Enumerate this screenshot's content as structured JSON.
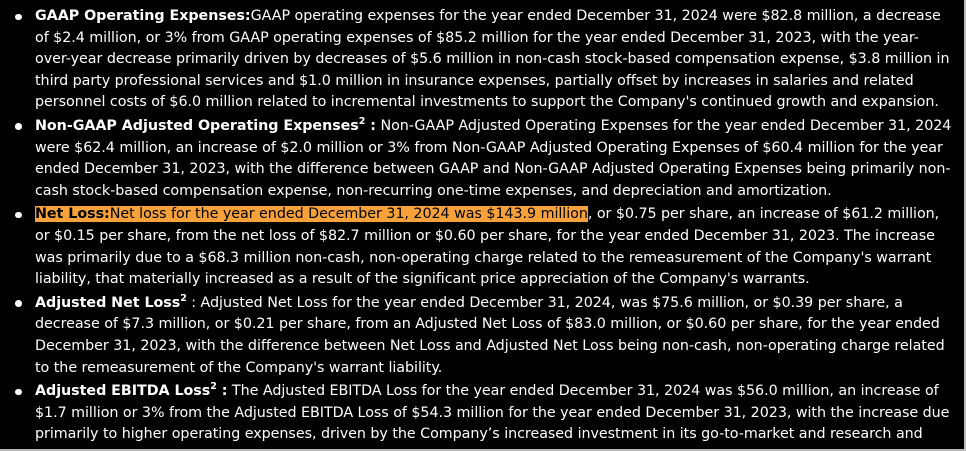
{
  "items": [
    {
      "title": "GAAP Operating Expenses:",
      "sup": "",
      "title_end": "",
      "highlight": "",
      "text": "GAAP operating expenses for the year ended December 31, 2024 were $82.8 million, a decrease of $2.4 million, or 3% from GAAP operating expenses of $85.2 million for the year ended December 31, 2023, with the year-over-year decrease primarily driven by decreases of $5.6 million in non-cash stock-based compensation expense, $3.8 million in third party professional services and $1.0 million in insurance expenses, partially offset by increases in salaries and related personnel costs of $6.0 million related to incremental investments to support the Company's continued growth and expansion."
    },
    {
      "title": "Non-GAAP Adjusted Operating Expenses",
      "sup": "2",
      "title_end": " :",
      "highlight": "",
      "text": " Non-GAAP Adjusted Operating Expenses for the year ended December 31, 2024 were $62.4 million, an increase of $2.0 million or 3% from Non-GAAP Adjusted Operating Expenses of $60.4 million for the year ended December 31, 2023, with the difference between GAAP and Non-GAAP Adjusted Operating Expenses being primarily non-cash stock-based compensation expense, non-recurring one-time expenses, and depreciation and amortization."
    },
    {
      "title": "Net Loss:",
      "sup": "",
      "title_end": "",
      "highlight": "Net loss for the year ended December 31, 2024 was $143.9 million",
      "text": ", or $0.75 per share, an increase of $61.2 million, or $0.15 per share, from the net loss of $82.7 million or $0.60 per share, for the year ended December 31, 2023. The increase was primarily due to a $68.3 million non-cash, non-operating charge related to the remeasurement of the Company's warrant liability, that materially increased as a result of the significant price appreciation of the Company's warrants."
    },
    {
      "title": "Adjusted Net Loss",
      "sup": "2",
      "title_end": "",
      "highlight": "",
      "text": " : Adjusted Net Loss for the year ended December 31, 2024, was $75.6 million, or $0.39 per share, a decrease of $7.3 million, or $0.21 per share, from an Adjusted Net Loss of $83.0 million, or $0.60 per share, for the year ended December 31, 2023, with the difference between Net Loss and Adjusted Net Loss being non-cash, non-operating charge related to the remeasurement of the Company's warrant liability."
    },
    {
      "title": "Adjusted EBITDA Loss",
      "sup": "2",
      "title_end": " :",
      "highlight": "",
      "text": " The Adjusted EBITDA Loss for the year ended December 31, 2024 was $56.0 million, an increase of $1.7 million or 3% from the Adjusted EBITDA Loss of $54.3 million for the year ended December 31, 2023, with the increase due primarily to higher operating expenses, driven by the Company’s increased investment in its go-to-market and research and development organizations."
    }
  ],
  "colors": {
    "background": "#000000",
    "text": "#ffffff",
    "highlight": "#f7a13a",
    "frame_edge": "#b9b9b9"
  }
}
